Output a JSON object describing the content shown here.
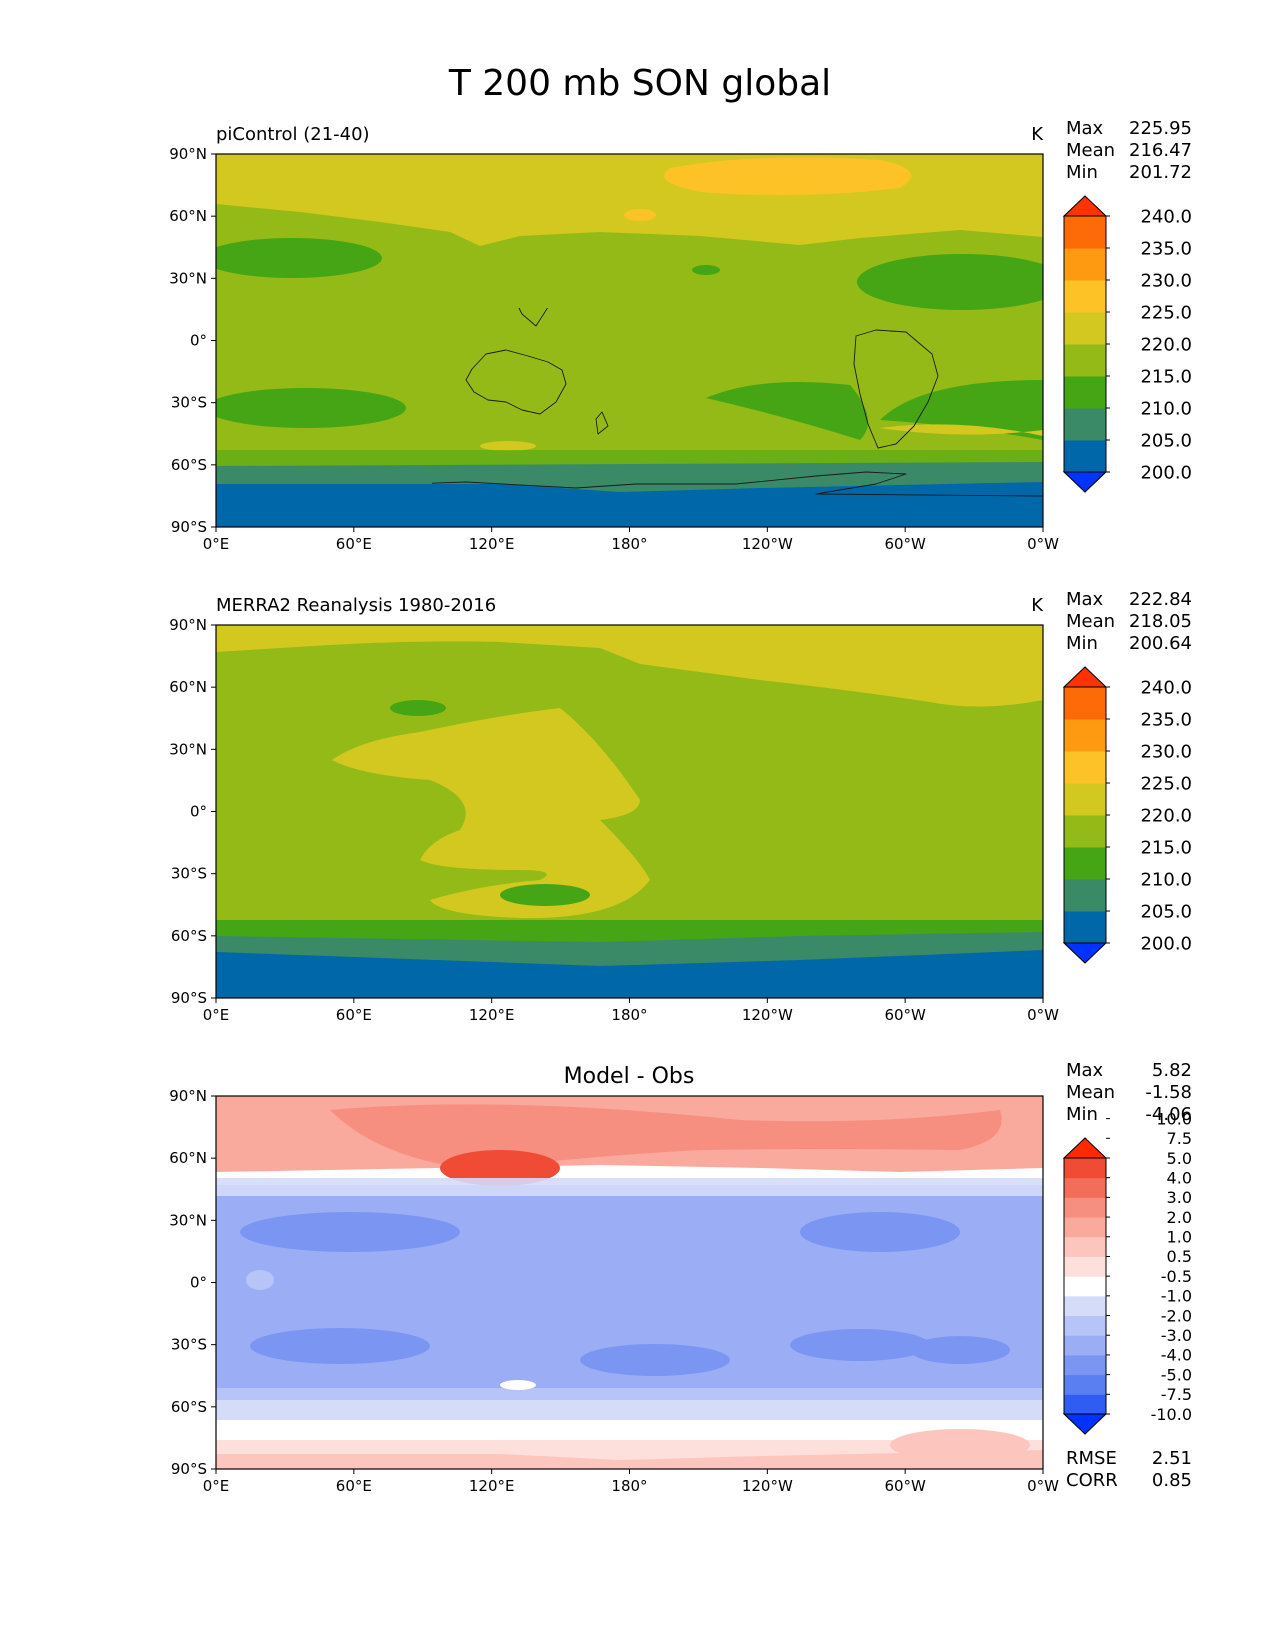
{
  "title": "T 200 mb SON global",
  "lon_ticks": [
    "0°E",
    "60°E",
    "120°E",
    "180°",
    "120°W",
    "60°W",
    "0°W"
  ],
  "lat_ticks": [
    "90°N",
    "60°N",
    "30°N",
    "0°",
    "30°S",
    "60°S",
    "90°S"
  ],
  "colors": {
    "abs": [
      "#0033ff",
      "#0068a8",
      "#3a8a68",
      "#45a514",
      "#94ba18",
      "#d2c820",
      "#fdc326",
      "#fd9a12",
      "#fd6a08",
      "#ff3300"
    ],
    "diff": [
      "#0033ff",
      "#2f5cf2",
      "#5a7ff0",
      "#7b96f2",
      "#9baef5",
      "#b7c4f7",
      "#d4dcf8",
      "#ffffff",
      "#fde0dc",
      "#fcc6bf",
      "#faa99d",
      "#f78f80",
      "#f36e5a",
      "#ef4b35",
      "#ff2a00"
    ]
  },
  "panels": [
    {
      "id": "picontrol",
      "left_title": "piControl (21-40)",
      "center_title": "",
      "units": "K",
      "stats": [
        {
          "label": "Max",
          "value": "225.95"
        },
        {
          "label": "Mean",
          "value": "216.47"
        },
        {
          "label": "Min",
          "value": "201.72"
        }
      ],
      "colorbar": {
        "levels": [
          "200.0",
          "205.0",
          "210.0",
          "215.0",
          "220.0",
          "225.0",
          "230.0",
          "235.0",
          "240.0"
        ],
        "palette": "abs"
      },
      "extra_stats": []
    },
    {
      "id": "merra2",
      "left_title": "MERRA2 Reanalysis 1980-2016",
      "center_title": "",
      "units": "K",
      "stats": [
        {
          "label": "Max",
          "value": "222.84"
        },
        {
          "label": "Mean",
          "value": "218.05"
        },
        {
          "label": "Min",
          "value": "200.64"
        }
      ],
      "colorbar": {
        "levels": [
          "200.0",
          "205.0",
          "210.0",
          "215.0",
          "220.0",
          "225.0",
          "230.0",
          "235.0",
          "240.0"
        ],
        "palette": "abs"
      },
      "extra_stats": []
    },
    {
      "id": "diff",
      "left_title": "",
      "center_title": "Model - Obs",
      "units": "",
      "stats": [
        {
          "label": "Max",
          "value": "5.82"
        },
        {
          "label": "Mean",
          "value": "-1.58"
        },
        {
          "label": "Min",
          "value": "-4.06"
        }
      ],
      "colorbar": {
        "levels": [
          "-10.0",
          "-7.5",
          "-5.0",
          "-4.0",
          "-3.0",
          "-2.0",
          "-1.0",
          "-0.5",
          "0.5",
          "1.0",
          "2.0",
          "3.0",
          "4.0",
          "5.0",
          "7.5",
          "10.0"
        ],
        "palette": "diff"
      },
      "extra_stats": [
        {
          "label": "RMSE",
          "value": "2.51"
        },
        {
          "label": "CORR",
          "value": "0.85"
        }
      ]
    }
  ]
}
